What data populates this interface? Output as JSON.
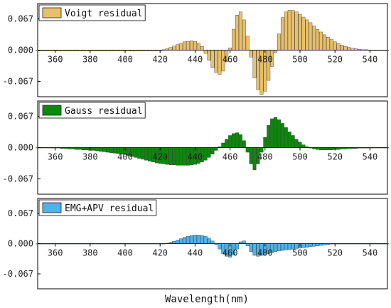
{
  "chart_data": [
    {
      "type": "bar",
      "legend": "Voigt residual",
      "color": "#E8C06A",
      "ylim": [
        -0.1,
        0.1
      ],
      "yticks": [
        "0.067",
        "0.000",
        "-0.067"
      ],
      "xlim": [
        350,
        550
      ],
      "xticks": [
        360,
        380,
        400,
        420,
        440,
        460,
        480,
        500,
        520,
        540
      ],
      "x": [
        350,
        352,
        354,
        356,
        358,
        360,
        362,
        364,
        366,
        368,
        370,
        372,
        374,
        376,
        378,
        380,
        382,
        384,
        386,
        388,
        390,
        392,
        394,
        396,
        398,
        400,
        402,
        404,
        406,
        408,
        410,
        412,
        414,
        416,
        418,
        420,
        422,
        424,
        426,
        428,
        430,
        432,
        434,
        436,
        438,
        440,
        442,
        444,
        446,
        448,
        450,
        452,
        454,
        456,
        458,
        460,
        462,
        464,
        466,
        468,
        470,
        472,
        474,
        476,
        478,
        480,
        482,
        484,
        486,
        488,
        490,
        492,
        494,
        496,
        498,
        500,
        502,
        504,
        506,
        508,
        510,
        512,
        514,
        516,
        518,
        520,
        522,
        524,
        526,
        528,
        530,
        532,
        534,
        536,
        538,
        540,
        542,
        544,
        546,
        548,
        550
      ],
      "values": [
        -0.002,
        -0.002,
        -0.002,
        -0.002,
        -0.002,
        -0.002,
        -0.002,
        -0.002,
        -0.002,
        -0.002,
        -0.002,
        -0.002,
        -0.002,
        -0.002,
        -0.002,
        -0.002,
        -0.002,
        -0.002,
        -0.002,
        -0.002,
        -0.002,
        -0.002,
        -0.002,
        -0.002,
        -0.002,
        -0.002,
        -0.002,
        -0.002,
        -0.002,
        -0.002,
        -0.002,
        -0.002,
        -0.002,
        -0.002,
        -0.002,
        -0.001,
        0.001,
        0.003,
        0.006,
        0.009,
        0.012,
        0.015,
        0.018,
        0.019,
        0.02,
        0.019,
        0.015,
        0.008,
        -0.007,
        -0.022,
        -0.038,
        -0.048,
        -0.052,
        -0.045,
        -0.025,
        0.005,
        0.045,
        0.075,
        0.082,
        0.065,
        0.03,
        -0.015,
        -0.06,
        -0.085,
        -0.095,
        -0.088,
        -0.065,
        -0.035,
        -0.005,
        0.035,
        0.07,
        0.082,
        0.086,
        0.085,
        0.082,
        0.077,
        0.071,
        0.065,
        0.059,
        0.052,
        0.045,
        0.039,
        0.033,
        0.028,
        0.023,
        0.018,
        0.014,
        0.011,
        0.008,
        0.006,
        0.004,
        0.003,
        0.002,
        0.001,
        0.001,
        0,
        0,
        0,
        0,
        0,
        0
      ]
    },
    {
      "type": "bar",
      "legend": "Gauss residual",
      "color": "#0A8A0A",
      "ylim": [
        -0.1,
        0.1
      ],
      "yticks": [
        "0.067",
        "0.000",
        "-0.067"
      ],
      "xlim": [
        350,
        550
      ],
      "xticks": [
        360,
        380,
        400,
        420,
        440,
        460,
        480,
        500,
        520,
        540
      ],
      "x": [
        350,
        352,
        354,
        356,
        358,
        360,
        362,
        364,
        366,
        368,
        370,
        372,
        374,
        376,
        378,
        380,
        382,
        384,
        386,
        388,
        390,
        392,
        394,
        396,
        398,
        400,
        402,
        404,
        406,
        408,
        410,
        412,
        414,
        416,
        418,
        420,
        422,
        424,
        426,
        428,
        430,
        432,
        434,
        436,
        438,
        440,
        442,
        444,
        446,
        448,
        450,
        452,
        454,
        456,
        458,
        460,
        462,
        464,
        466,
        468,
        470,
        472,
        474,
        476,
        478,
        480,
        482,
        484,
        486,
        488,
        490,
        492,
        494,
        496,
        498,
        500,
        502,
        504,
        506,
        508,
        510,
        512,
        514,
        516,
        518,
        520,
        522,
        524,
        526,
        528,
        530,
        532,
        534,
        536,
        538,
        540,
        542,
        544,
        546,
        548,
        550
      ],
      "values": [
        0,
        0,
        0,
        0,
        -0.001,
        -0.001,
        -0.001,
        -0.002,
        -0.002,
        -0.003,
        -0.003,
        -0.004,
        -0.004,
        -0.005,
        -0.005,
        -0.006,
        -0.006,
        -0.007,
        -0.008,
        -0.009,
        -0.01,
        -0.011,
        -0.012,
        -0.013,
        -0.014,
        -0.015,
        -0.017,
        -0.019,
        -0.021,
        -0.023,
        -0.025,
        -0.027,
        -0.029,
        -0.031,
        -0.033,
        -0.034,
        -0.035,
        -0.036,
        -0.037,
        -0.037,
        -0.038,
        -0.038,
        -0.038,
        -0.038,
        -0.037,
        -0.036,
        -0.034,
        -0.031,
        -0.027,
        -0.021,
        -0.014,
        -0.006,
        0.002,
        0.01,
        0.018,
        0.026,
        0.03,
        0.032,
        0.028,
        0.015,
        -0.01,
        -0.035,
        -0.048,
        -0.035,
        -0.01,
        0.022,
        0.048,
        0.062,
        0.065,
        0.06,
        0.052,
        0.043,
        0.034,
        0.026,
        0.018,
        0.012,
        0.006,
        0.002,
        -0.001,
        -0.003,
        -0.004,
        -0.005,
        -0.005,
        -0.005,
        -0.005,
        -0.004,
        -0.004,
        -0.003,
        -0.003,
        -0.002,
        -0.002,
        -0.002,
        -0.001,
        -0.001,
        -0.001,
        -0.001,
        0,
        0,
        0,
        0,
        0
      ]
    },
    {
      "type": "bar",
      "legend": "EMG+APV residual",
      "color": "#4EB3E8",
      "ylim": [
        -0.1,
        0.1
      ],
      "yticks": [
        "0.067",
        "0.000",
        "-0.067"
      ],
      "xlim": [
        350,
        550
      ],
      "xticks": [
        360,
        380,
        400,
        420,
        440,
        460,
        480,
        500,
        520,
        540
      ],
      "x": [
        350,
        352,
        354,
        356,
        358,
        360,
        362,
        364,
        366,
        368,
        370,
        372,
        374,
        376,
        378,
        380,
        382,
        384,
        386,
        388,
        390,
        392,
        394,
        396,
        398,
        400,
        402,
        404,
        406,
        408,
        410,
        412,
        414,
        416,
        418,
        420,
        422,
        424,
        426,
        428,
        430,
        432,
        434,
        436,
        438,
        440,
        442,
        444,
        446,
        448,
        450,
        452,
        454,
        456,
        458,
        460,
        462,
        464,
        466,
        468,
        470,
        472,
        474,
        476,
        478,
        480,
        482,
        484,
        486,
        488,
        490,
        492,
        494,
        496,
        498,
        500,
        502,
        504,
        506,
        508,
        510,
        512,
        514,
        516,
        518,
        520,
        522,
        524,
        526,
        528,
        530,
        532,
        534,
        536,
        538,
        540,
        542,
        544,
        546,
        548,
        550
      ],
      "values": [
        0,
        0,
        0,
        0,
        0,
        0,
        0,
        0,
        0,
        0,
        0,
        0,
        0,
        0,
        0,
        0,
        0,
        0,
        0,
        0,
        0,
        0,
        0,
        0,
        0,
        0,
        0,
        0,
        0,
        0,
        0,
        0,
        0,
        0,
        0,
        0,
        0,
        0.001,
        0.003,
        0.005,
        0.008,
        0.011,
        0.014,
        0.016,
        0.018,
        0.019,
        0.019,
        0.018,
        0.016,
        0.012,
        0.006,
        -0.002,
        -0.012,
        -0.022,
        -0.028,
        -0.03,
        -0.025,
        -0.012,
        0.004,
        0.006,
        -0.005,
        -0.018,
        -0.026,
        -0.028,
        -0.026,
        -0.024,
        -0.022,
        -0.02,
        -0.018,
        -0.016,
        -0.015,
        -0.014,
        -0.013,
        -0.012,
        -0.011,
        -0.01,
        -0.009,
        -0.008,
        -0.007,
        -0.006,
        -0.005,
        -0.004,
        -0.003,
        -0.002,
        -0.001,
        0,
        0,
        0,
        0,
        0,
        0,
        0,
        0,
        0,
        0,
        0,
        0,
        0,
        0,
        0,
        0
      ]
    }
  ],
  "xlabel": "Wavelength(nm)"
}
